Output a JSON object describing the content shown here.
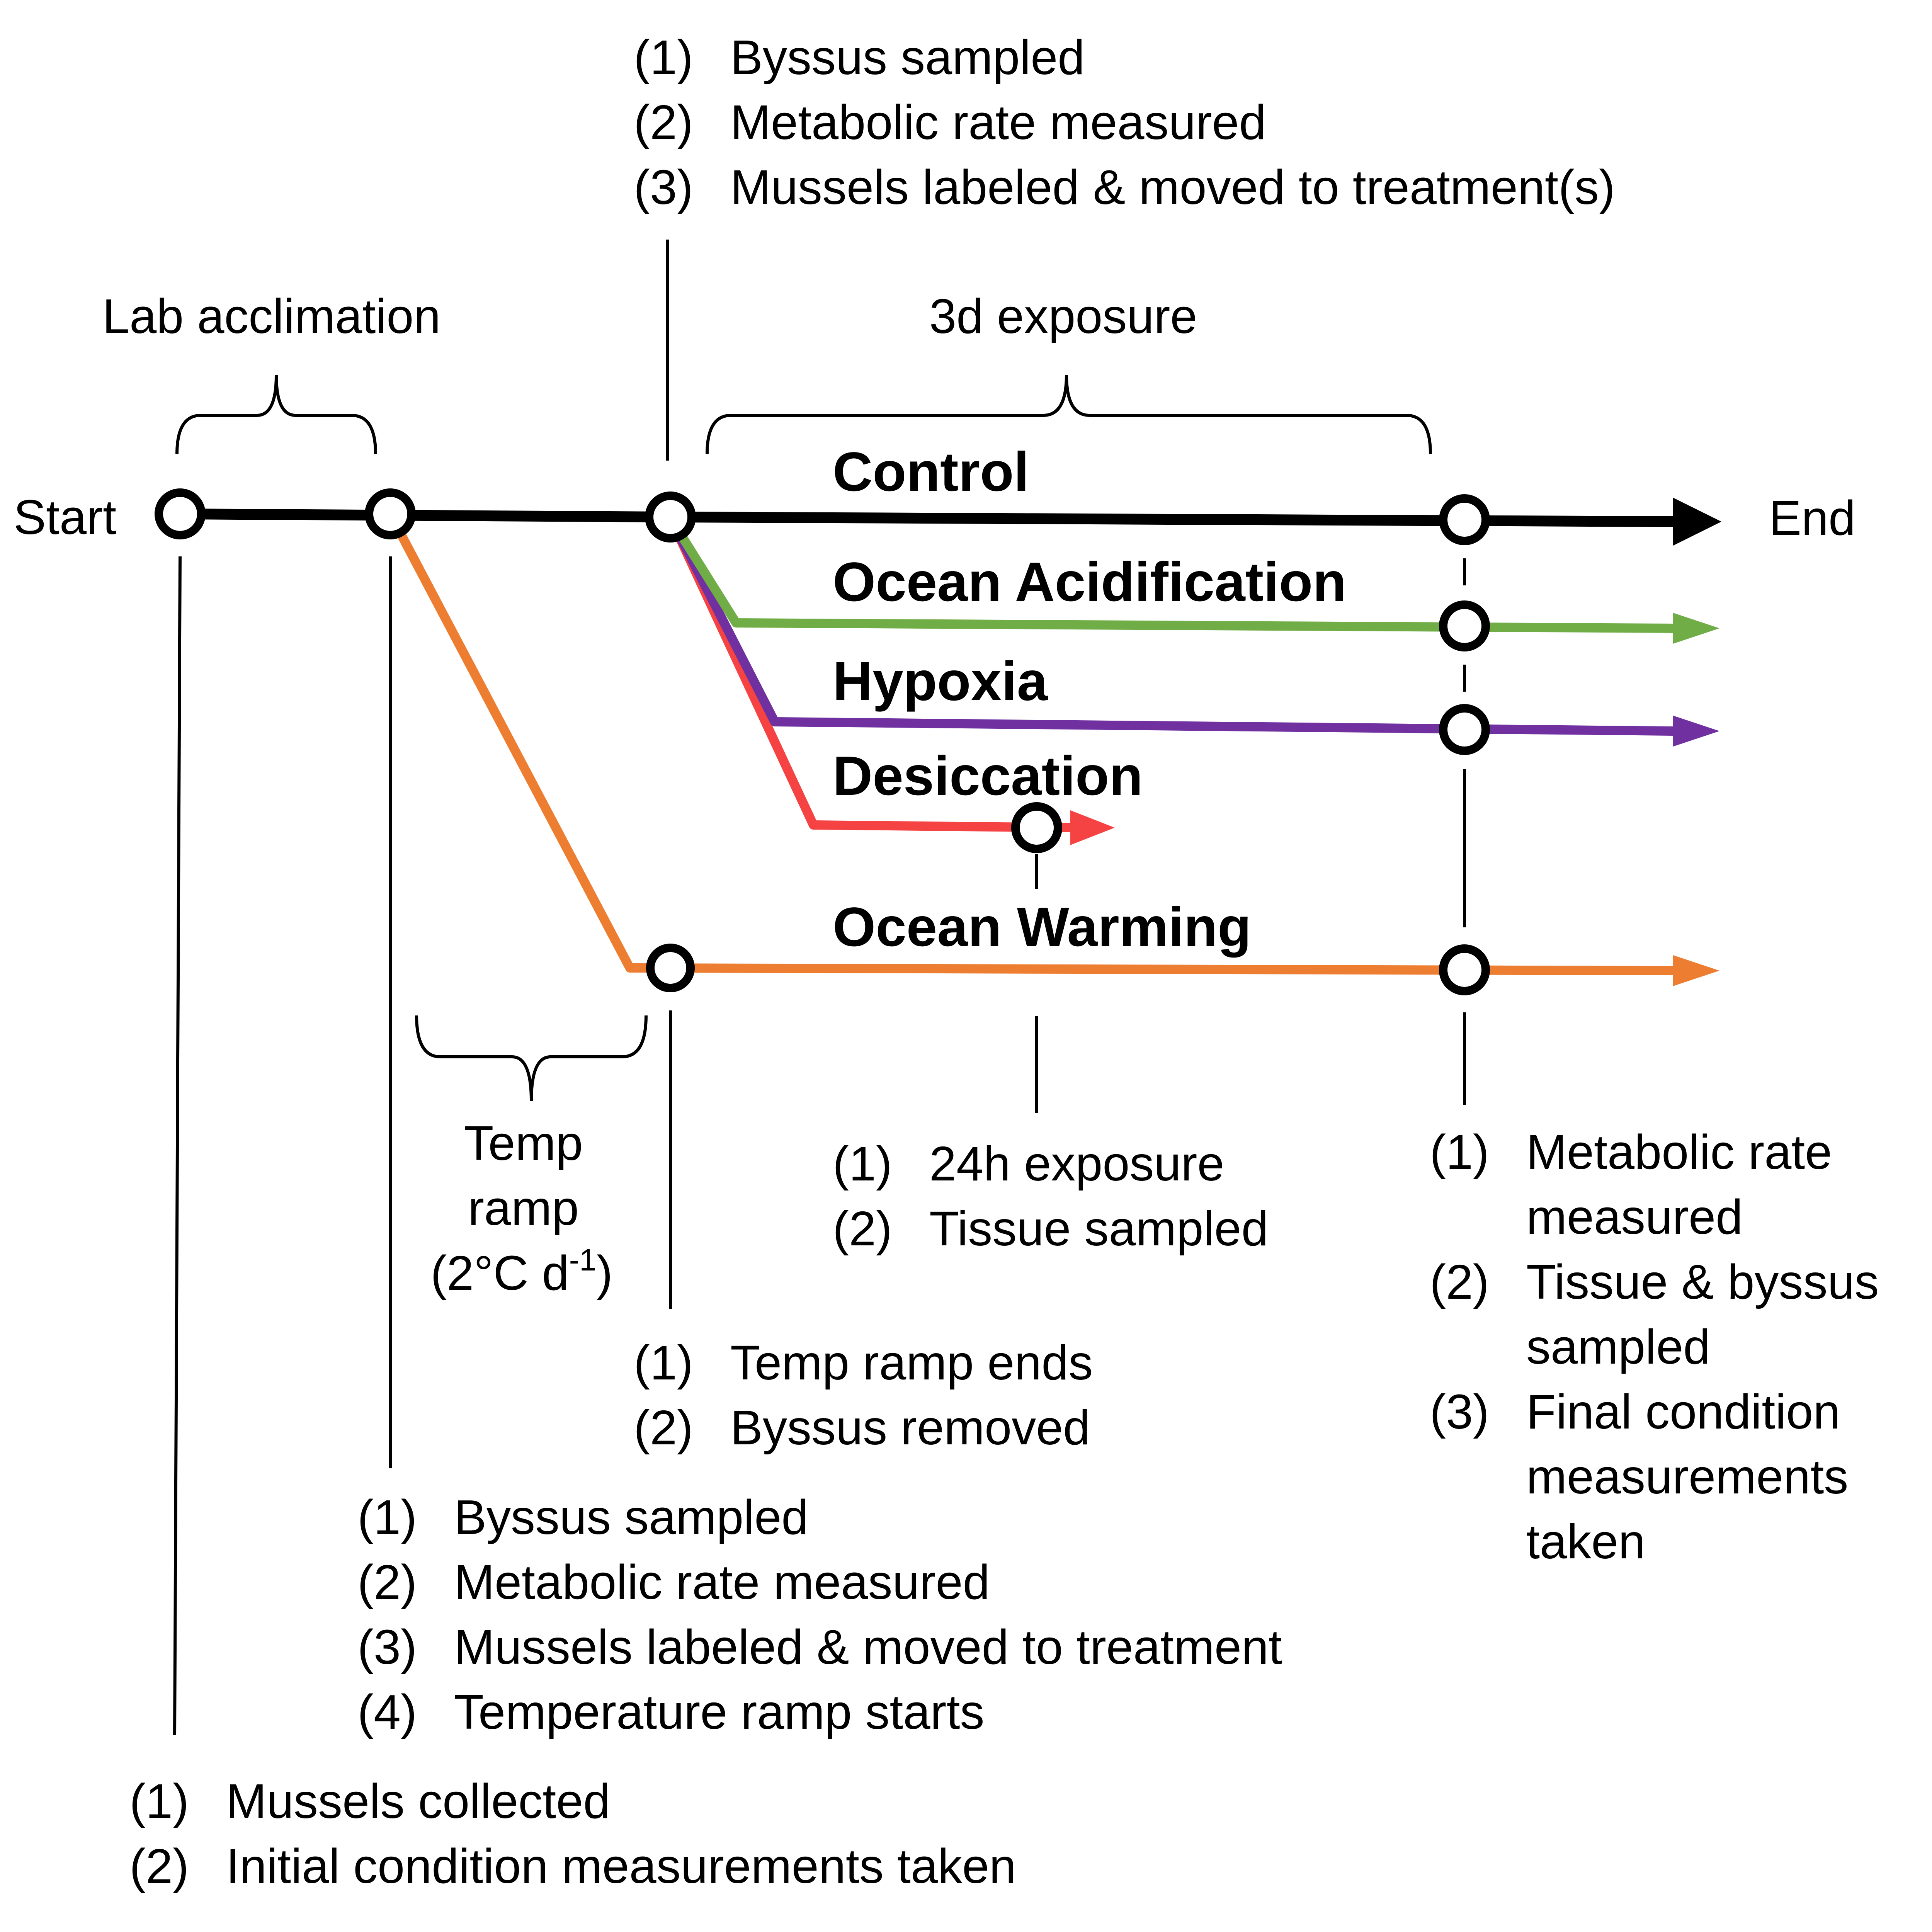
{
  "timeline": {
    "start_label": "Start",
    "end_label": "End",
    "lab_acclimation_label": "Lab acclimation",
    "exposure_label": "3d exposure",
    "temp_ramp_label": [
      "Temp",
      "ramp",
      "(2°C d",
      "-1",
      ")"
    ]
  },
  "treatments": {
    "control": {
      "name": "Control",
      "color": "#000000"
    },
    "ocean_acidification": {
      "name": "Ocean Acidification",
      "color": "#70ad47"
    },
    "hypoxia": {
      "name": "Hypoxia",
      "color": "#7030a0"
    },
    "desiccation": {
      "name": "Desiccation",
      "color": "#f54242"
    },
    "ocean_warming": {
      "name": "Ocean Warming",
      "color": "#ed7d31"
    }
  },
  "notes": {
    "top": [
      {
        "num": "(1)",
        "text": "Byssus sampled"
      },
      {
        "num": "(2)",
        "text": "Metabolic rate measured"
      },
      {
        "num": "(3)",
        "text": "Mussels labeled & moved to treatment(s)"
      }
    ],
    "start": [
      {
        "num": "(1)",
        "text": "Mussels collected"
      },
      {
        "num": "(2)",
        "text": "Initial condition measurements taken"
      }
    ],
    "ramp_start": [
      {
        "num": "(1)",
        "text": "Byssus sampled"
      },
      {
        "num": "(2)",
        "text": "Metabolic rate measured"
      },
      {
        "num": "(3)",
        "text": "Mussels labeled & moved to treatment"
      },
      {
        "num": "(4)",
        "text": "Temperature ramp starts"
      }
    ],
    "ramp_end": [
      {
        "num": "(1)",
        "text": "Temp ramp ends"
      },
      {
        "num": "(2)",
        "text": "Byssus removed"
      }
    ],
    "desiccation": [
      {
        "num": "(1)",
        "text": "24h exposure"
      },
      {
        "num": "(2)",
        "text": "Tissue sampled"
      }
    ],
    "final": [
      {
        "num": "(1)",
        "lines": [
          "Metabolic rate",
          "measured"
        ]
      },
      {
        "num": "(2)",
        "lines": [
          "Tissue & byssus",
          "sampled"
        ]
      },
      {
        "num": "(3)",
        "lines": [
          "Final condition",
          "measurements",
          "taken"
        ]
      }
    ]
  }
}
